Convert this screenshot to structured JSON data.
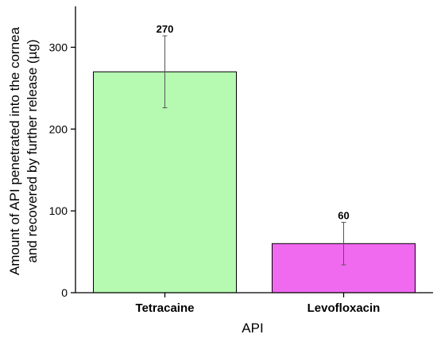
{
  "chart_data": {
    "type": "bar",
    "categories": [
      "Tetracaine",
      "Levofloxacin"
    ],
    "values": [
      270,
      60
    ],
    "errors": [
      44,
      26
    ],
    "data_labels": [
      "270",
      "60"
    ],
    "colors": [
      "#b6f9b1",
      "#f06af0"
    ],
    "xlabel": "API",
    "ylabel_line1": "Amount of API penetrated into the cornea",
    "ylabel_line2": "and recovered by further release (µg)",
    "ylim": [
      0,
      350
    ],
    "yticks": [
      0,
      100,
      200,
      300
    ],
    "grid": false,
    "legend": "none"
  }
}
